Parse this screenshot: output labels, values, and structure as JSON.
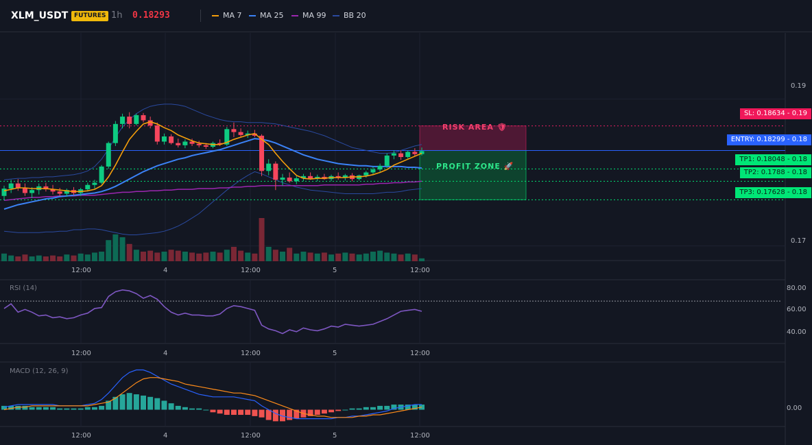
{
  "header": {
    "symbol": "XLM_USDT",
    "badge": "FUTURES",
    "interval": "1h",
    "last_price": "0.18293",
    "indicators": [
      {
        "name": "MA 7",
        "color": "#f59e0b"
      },
      {
        "name": "MA 25",
        "color": "#3b82f6"
      },
      {
        "name": "MA 99",
        "color": "#9c27b0"
      },
      {
        "name": "BB 20",
        "color": "#2a4aa0"
      }
    ]
  },
  "colors": {
    "up": "#0ecb81",
    "down": "#f6465d",
    "risk": "#e91e63",
    "profit": "#00e676",
    "entry": "#2962ff"
  },
  "zones": {
    "risk_label": "RISK AREA 🛡",
    "profit_label": "PROFIT ZONE 🚀"
  },
  "price_tags": {
    "sl": "SL: 0.18634 - 0.19",
    "entry": "ENTRY: 0.18299 - 0.18",
    "tp1": "TP1: 0.18048 - 0.18",
    "tp2": "TP2: 0.1788 - 0.18",
    "tp3": "TP3: 0.17628 - 0.18"
  },
  "axes": {
    "price_ticks": [
      "0.19",
      "0.17"
    ],
    "time_ticks": [
      "12:00",
      "4",
      "12:00",
      "5",
      "12:00"
    ],
    "rsi_ticks": [
      "80.00",
      "60.00",
      "40.00"
    ],
    "macd_ticks": [
      "0.00"
    ]
  },
  "panes": {
    "rsi_title": "RSI (14)",
    "macd_title": "MACD (12, 26, 9)"
  },
  "chart_data": [
    {
      "type": "candlestick",
      "title": "",
      "price_range": [
        0.168,
        0.199
      ],
      "levels": {
        "sl": 0.18634,
        "entry": 0.18299,
        "tp1": 0.18048,
        "tp2": 0.1788,
        "tp3": 0.17628
      },
      "ohlc": [
        [
          0.1768,
          0.1782,
          0.1762,
          0.1778
        ],
        [
          0.1778,
          0.179,
          0.1772,
          0.1785
        ],
        [
          0.1785,
          0.1791,
          0.1775,
          0.1779
        ],
        [
          0.1779,
          0.1785,
          0.1768,
          0.1772
        ],
        [
          0.1772,
          0.178,
          0.1765,
          0.1776
        ],
        [
          0.1776,
          0.1785,
          0.177,
          0.1781
        ],
        [
          0.1781,
          0.1786,
          0.1774,
          0.1777
        ],
        [
          0.1777,
          0.1783,
          0.177,
          0.1774
        ],
        [
          0.1774,
          0.1779,
          0.1768,
          0.1771
        ],
        [
          0.1771,
          0.1778,
          0.1767,
          0.1776
        ],
        [
          0.1776,
          0.178,
          0.1769,
          0.1772
        ],
        [
          0.1772,
          0.1779,
          0.1768,
          0.1777
        ],
        [
          0.1777,
          0.1786,
          0.1774,
          0.1783
        ],
        [
          0.1783,
          0.179,
          0.1778,
          0.1786
        ],
        [
          0.1786,
          0.181,
          0.1784,
          0.1808
        ],
        [
          0.1808,
          0.1842,
          0.1805,
          0.184
        ],
        [
          0.184,
          0.187,
          0.1836,
          0.1866
        ],
        [
          0.1866,
          0.188,
          0.186,
          0.1876
        ],
        [
          0.1876,
          0.1882,
          0.186,
          0.1866
        ],
        [
          0.1866,
          0.188,
          0.1864,
          0.1878
        ],
        [
          0.1878,
          0.1881,
          0.1868,
          0.1871
        ],
        [
          0.1871,
          0.1876,
          0.186,
          0.1864
        ],
        [
          0.1864,
          0.1868,
          0.1838,
          0.1842
        ],
        [
          0.1842,
          0.1853,
          0.1838,
          0.1849
        ],
        [
          0.1849,
          0.1852,
          0.1838,
          0.184
        ],
        [
          0.184,
          0.1846,
          0.1834,
          0.1837
        ],
        [
          0.1837,
          0.1845,
          0.1833,
          0.1842
        ],
        [
          0.1842,
          0.1846,
          0.1836,
          0.1839
        ],
        [
          0.1839,
          0.1843,
          0.1834,
          0.1837
        ],
        [
          0.1837,
          0.184,
          0.1832,
          0.1835
        ],
        [
          0.1835,
          0.1842,
          0.1833,
          0.184
        ],
        [
          0.184,
          0.1845,
          0.1836,
          0.1838
        ],
        [
          0.1838,
          0.1862,
          0.1836,
          0.1859
        ],
        [
          0.1859,
          0.1868,
          0.1848,
          0.1855
        ],
        [
          0.1855,
          0.186,
          0.1848,
          0.1851
        ],
        [
          0.1851,
          0.1857,
          0.1847,
          0.1853
        ],
        [
          0.1853,
          0.1858,
          0.1848,
          0.185
        ],
        [
          0.185,
          0.1852,
          0.1795,
          0.1802
        ],
        [
          0.1802,
          0.1818,
          0.1796,
          0.1812
        ],
        [
          0.1812,
          0.1815,
          0.1776,
          0.179
        ],
        [
          0.179,
          0.1798,
          0.1782,
          0.1793
        ],
        [
          0.1793,
          0.18,
          0.1786,
          0.1788
        ],
        [
          0.1788,
          0.1795,
          0.1784,
          0.1792
        ],
        [
          0.1792,
          0.1798,
          0.1788,
          0.1795
        ],
        [
          0.1795,
          0.18,
          0.179,
          0.1792
        ],
        [
          0.1792,
          0.1797,
          0.1788,
          0.1794
        ],
        [
          0.1794,
          0.1798,
          0.179,
          0.1791
        ],
        [
          0.1791,
          0.1797,
          0.1788,
          0.1795
        ],
        [
          0.1795,
          0.18,
          0.179,
          0.1793
        ],
        [
          0.1793,
          0.1798,
          0.1789,
          0.1796
        ],
        [
          0.1796,
          0.1799,
          0.1788,
          0.1791
        ],
        [
          0.1791,
          0.1797,
          0.1789,
          0.1796
        ],
        [
          0.1796,
          0.1802,
          0.1793,
          0.18
        ],
        [
          0.18,
          0.1808,
          0.1797,
          0.1804
        ],
        [
          0.1804,
          0.1812,
          0.18,
          0.1809
        ],
        [
          0.1809,
          0.1826,
          0.1806,
          0.1823
        ],
        [
          0.1823,
          0.183,
          0.1818,
          0.1826
        ],
        [
          0.1826,
          0.183,
          0.1817,
          0.1821
        ],
        [
          0.1821,
          0.183,
          0.1819,
          0.1828
        ],
        [
          0.1828,
          0.1833,
          0.1822,
          0.1825
        ],
        [
          0.1825,
          0.1834,
          0.1823,
          0.1829
        ]
      ],
      "volume": [
        8,
        6,
        5,
        7,
        5,
        6,
        5,
        6,
        5,
        7,
        6,
        8,
        7,
        9,
        10,
        22,
        28,
        25,
        18,
        12,
        10,
        11,
        9,
        10,
        12,
        11,
        10,
        9,
        8,
        9,
        10,
        9,
        12,
        15,
        11,
        9,
        8,
        45,
        15,
        12,
        10,
        14,
        8,
        10,
        9,
        8,
        9,
        7,
        8,
        9,
        8,
        7,
        8,
        10,
        11,
        9,
        8,
        7,
        8,
        7,
        3
      ],
      "ma7": [
        0.1775,
        0.1777,
        0.1779,
        0.1779,
        0.1778,
        0.1778,
        0.1778,
        0.1777,
        0.1776,
        0.1775,
        0.1774,
        0.1774,
        0.1775,
        0.1777,
        0.1782,
        0.1794,
        0.181,
        0.1828,
        0.1845,
        0.1856,
        0.1866,
        0.1869,
        0.1866,
        0.1861,
        0.1857,
        0.1851,
        0.1847,
        0.1843,
        0.184,
        0.1839,
        0.1838,
        0.1838,
        0.1841,
        0.1845,
        0.1848,
        0.1851,
        0.1853,
        0.1845,
        0.1838,
        0.1826,
        0.1815,
        0.1805,
        0.1796,
        0.1792,
        0.1791,
        0.1792,
        0.1792,
        0.1793,
        0.1793,
        0.1793,
        0.1794,
        0.1794,
        0.1795,
        0.1797,
        0.18,
        0.1804,
        0.181,
        0.1814,
        0.1818,
        0.1822,
        0.1826
      ],
      "ma25": [
        0.175,
        0.1753,
        0.1756,
        0.1758,
        0.176,
        0.1762,
        0.1764,
        0.1765,
        0.1767,
        0.1768,
        0.1769,
        0.177,
        0.1771,
        0.1772,
        0.1774,
        0.1777,
        0.1781,
        0.1786,
        0.1791,
        0.1796,
        0.1801,
        0.1805,
        0.1809,
        0.1812,
        0.1815,
        0.1818,
        0.182,
        0.1823,
        0.1825,
        0.1827,
        0.1829,
        0.1831,
        0.1834,
        0.1837,
        0.184,
        0.1843,
        0.1846,
        0.1845,
        0.1843,
        0.184,
        0.1836,
        0.1832,
        0.1828,
        0.1824,
        0.1821,
        0.1818,
        0.1816,
        0.1814,
        0.1812,
        0.1811,
        0.181,
        0.1809,
        0.1809,
        0.1808,
        0.1808,
        0.1808,
        0.1808,
        0.1808,
        0.1807,
        0.1807,
        0.1806
      ],
      "ma99": [
        0.1762,
        0.1763,
        0.1764,
        0.1765,
        0.1766,
        0.1766,
        0.1767,
        0.1767,
        0.1768,
        0.1768,
        0.1768,
        0.1769,
        0.1769,
        0.1769,
        0.177,
        0.1771,
        0.1772,
        0.1773,
        0.1773,
        0.1774,
        0.1774,
        0.1775,
        0.1775,
        0.1776,
        0.1776,
        0.1777,
        0.1777,
        0.1777,
        0.1778,
        0.1778,
        0.1778,
        0.1779,
        0.1779,
        0.178,
        0.178,
        0.1781,
        0.1781,
        0.1782,
        0.1782,
        0.1782,
        0.1782,
        0.1782,
        0.1782,
        0.1782,
        0.1782,
        0.1782,
        0.1783,
        0.1783,
        0.1783,
        0.1783,
        0.1783,
        0.1783,
        0.1784,
        0.1784,
        0.1785,
        0.1785,
        0.1786,
        0.1786,
        0.1787,
        0.1787,
        0.1788
      ],
      "bb_upper": [
        0.179,
        0.1791,
        0.1792,
        0.1792,
        0.1793,
        0.1793,
        0.1794,
        0.1794,
        0.1795,
        0.1796,
        0.1797,
        0.1799,
        0.1802,
        0.1808,
        0.1818,
        0.1832,
        0.1848,
        0.1862,
        0.1872,
        0.188,
        0.1886,
        0.189,
        0.1892,
        0.1893,
        0.1893,
        0.1892,
        0.189,
        0.1886,
        0.1882,
        0.1878,
        0.1875,
        0.1872,
        0.187,
        0.1869,
        0.1869,
        0.1868,
        0.1868,
        0.1868,
        0.1867,
        0.1866,
        0.1864,
        0.1862,
        0.186,
        0.1858,
        0.1856,
        0.1853,
        0.185,
        0.1846,
        0.1842,
        0.1838,
        0.1834,
        0.1832,
        0.183,
        0.1828,
        0.1826,
        0.1826,
        0.1827,
        0.183,
        0.1833,
        0.1836,
        0.1838
      ],
      "bb_lower": [
        0.172,
        0.1719,
        0.1718,
        0.1718,
        0.1718,
        0.1718,
        0.1719,
        0.1719,
        0.172,
        0.172,
        0.1722,
        0.1722,
        0.1723,
        0.1723,
        0.1722,
        0.172,
        0.1718,
        0.1716,
        0.1715,
        0.1715,
        0.1716,
        0.1717,
        0.1718,
        0.172,
        0.1723,
        0.1727,
        0.1732,
        0.1738,
        0.1744,
        0.1752,
        0.176,
        0.1768,
        0.1776,
        0.1783,
        0.179,
        0.1796,
        0.1801,
        0.1798,
        0.1794,
        0.179,
        0.1786,
        0.1783,
        0.178,
        0.1778,
        0.1776,
        0.1775,
        0.1774,
        0.1773,
        0.1772,
        0.1771,
        0.1771,
        0.1771,
        0.1771,
        0.1771,
        0.1772,
        0.1773,
        0.1773,
        0.1774,
        0.1776,
        0.1777,
        0.1778
      ]
    },
    {
      "type": "line",
      "title": "RSI (14)",
      "ylim": [
        25,
        90
      ],
      "values": [
        62,
        67,
        58,
        61,
        58,
        54,
        55,
        52,
        53,
        51,
        52,
        55,
        57,
        62,
        63,
        75,
        80,
        82,
        81,
        78,
        73,
        76,
        72,
        64,
        58,
        55,
        57,
        55,
        55,
        54,
        54,
        56,
        62,
        65,
        64,
        62,
        60,
        44,
        40,
        38,
        35,
        39,
        37,
        41,
        39,
        38,
        40,
        43,
        42,
        45,
        44,
        43,
        44,
        45,
        48,
        51,
        55,
        59,
        60,
        61,
        59
      ],
      "reference_line": 70
    },
    {
      "type": "line",
      "title": "MACD (12, 26, 9)",
      "ylim": [
        -0.0012,
        0.0035
      ],
      "macd": [
        0.0002,
        0.0003,
        0.0004,
        0.0004,
        0.0004,
        0.0004,
        0.0004,
        0.0004,
        0.0003,
        0.0003,
        0.0003,
        0.0003,
        0.0004,
        0.0005,
        0.0008,
        0.0013,
        0.0019,
        0.0025,
        0.0029,
        0.0031,
        0.0031,
        0.0029,
        0.0026,
        0.0023,
        0.002,
        0.0018,
        0.0016,
        0.0014,
        0.0012,
        0.0011,
        0.001,
        0.001,
        0.001,
        0.001,
        0.0009,
        0.0008,
        0.0007,
        0.0003,
        0.0,
        -0.0003,
        -0.0005,
        -0.0006,
        -0.0007,
        -0.0007,
        -0.0007,
        -0.0007,
        -0.0007,
        -0.0007,
        -0.0006,
        -0.0006,
        -0.0005,
        -0.0005,
        -0.0004,
        -0.0003,
        -0.0002,
        -0.0001,
        0.0001,
        0.0002,
        0.0003,
        0.0004,
        0.0004
      ],
      "signal": [
        0.0,
        0.0001,
        0.0002,
        0.0002,
        0.0003,
        0.0003,
        0.0003,
        0.0003,
        0.0003,
        0.0003,
        0.0003,
        0.0003,
        0.0003,
        0.0004,
        0.0005,
        0.0006,
        0.0009,
        0.0013,
        0.0017,
        0.0021,
        0.0024,
        0.0025,
        0.0025,
        0.0024,
        0.0023,
        0.0022,
        0.002,
        0.0019,
        0.0018,
        0.0017,
        0.0016,
        0.0015,
        0.0014,
        0.0013,
        0.0013,
        0.0012,
        0.0011,
        0.0009,
        0.0007,
        0.0005,
        0.0003,
        0.0001,
        -0.0001,
        -0.0003,
        -0.0004,
        -0.0005,
        -0.0005,
        -0.0006,
        -0.0006,
        -0.0006,
        -0.0006,
        -0.0005,
        -0.0005,
        -0.0004,
        -0.0004,
        -0.0003,
        -0.0002,
        -0.0001,
        0.0,
        0.0001,
        0.0002
      ],
      "histogram": [
        0.0003,
        0.0003,
        0.0003,
        0.0003,
        0.0002,
        0.0002,
        0.0002,
        0.0002,
        0.0001,
        0.0001,
        0.0001,
        0.0001,
        0.0002,
        0.0002,
        0.0003,
        0.0007,
        0.001,
        0.0012,
        0.0013,
        0.0012,
        0.0011,
        0.001,
        0.0009,
        0.0007,
        0.0005,
        0.0003,
        0.0002,
        0.0001,
        0.0001,
        0.0,
        -0.0002,
        -0.0003,
        -0.0004,
        -0.0004,
        -0.0004,
        -0.0004,
        -0.0005,
        -0.0006,
        -0.0008,
        -0.0009,
        -0.0009,
        -0.0008,
        -0.0007,
        -0.0006,
        -0.0005,
        -0.0004,
        -0.0003,
        -0.0002,
        -0.0001,
        0.0,
        0.0001,
        0.0001,
        0.0002,
        0.0002,
        0.0003,
        0.0003,
        0.0004,
        0.0004,
        0.0004,
        0.0004,
        0.0004
      ]
    }
  ]
}
